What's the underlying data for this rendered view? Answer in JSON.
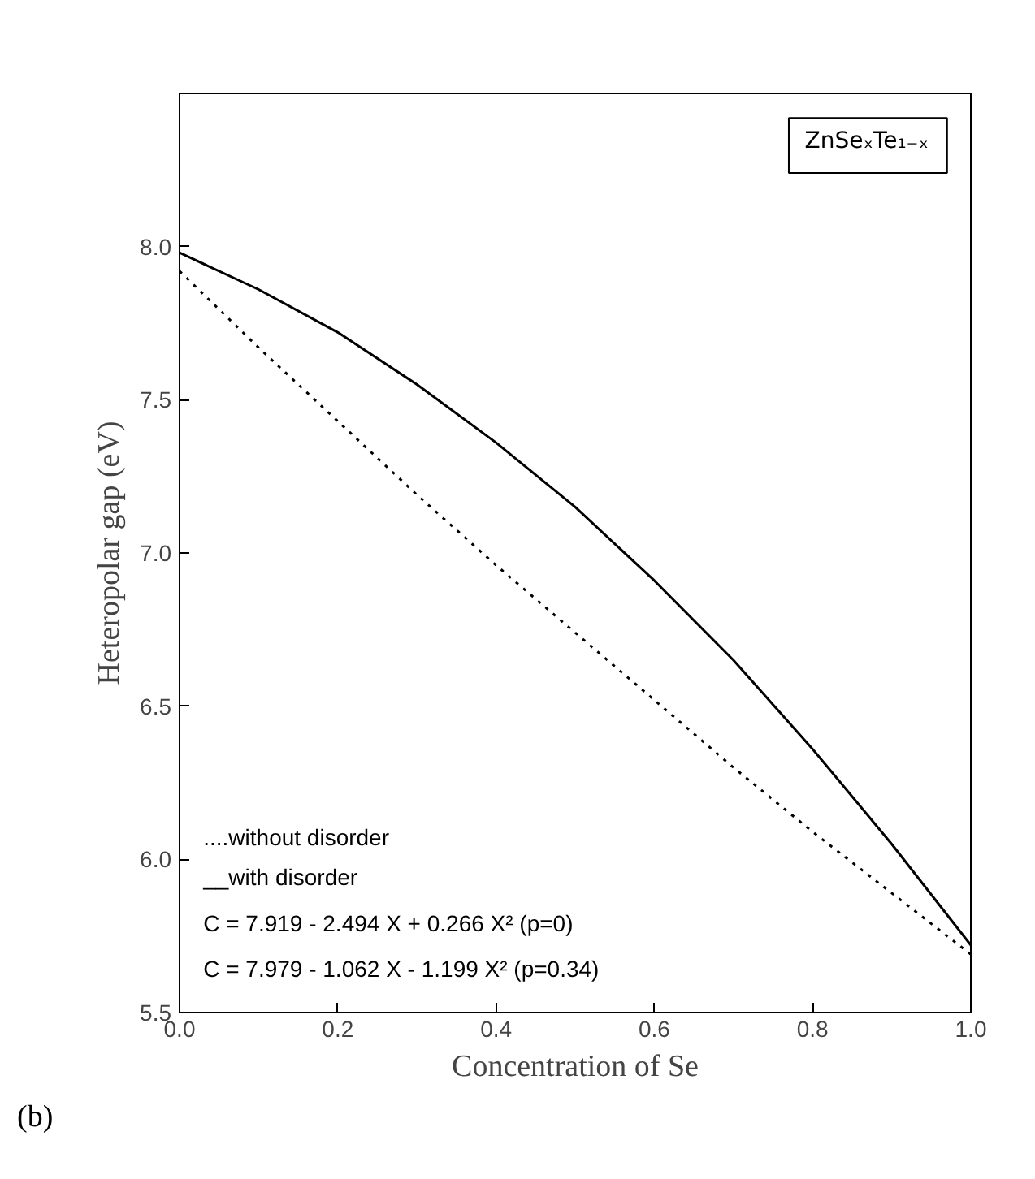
{
  "chart_data": {
    "type": "line",
    "xlabel": "Concentration of Se",
    "ylabel": "Heteropolar gap (eV)",
    "x": [
      0,
      0.1,
      0.2,
      0.3,
      0.4,
      0.5,
      0.6,
      0.7,
      0.8,
      0.9,
      1.0
    ],
    "series": [
      {
        "color": "#000000",
        "line_style": "dotted",
        "values": [
          7.92,
          7.67,
          7.43,
          7.19,
          6.96,
          6.74,
          6.52,
          6.3,
          6.09,
          5.89,
          5.69
        ]
      },
      {
        "color": "#000000",
        "line_style": "solid",
        "values": [
          7.98,
          7.86,
          7.72,
          7.55,
          7.36,
          7.15,
          6.91,
          6.65,
          6.36,
          6.05,
          5.72
        ]
      }
    ],
    "xlim": [
      0,
      1
    ],
    "ylim": [
      5.5,
      8.5
    ],
    "xticks": [
      {
        "value": 0,
        "label": "0.0"
      },
      0.2,
      0.4,
      0.6,
      0.8,
      {
        "value": 1,
        "label": "1.0"
      }
    ],
    "yticks": [
      5.5,
      {
        "value": 6,
        "label": "6.0"
      },
      6.5,
      {
        "value": 7,
        "label": "7.0"
      },
      7.5,
      {
        "value": 8,
        "label": "8.0"
      }
    ],
    "grid": false,
    "annotations": [
      "ZnSeₓTe₁₋ₓ",
      "....without disorder",
      "__with disorder",
      "C = 7.919 - 2.494 X + 0.266 X² (p=0)",
      "C = 7.979 - 1.062 X - 1.199 X² (p=0.34)",
      "(b)"
    ]
  }
}
